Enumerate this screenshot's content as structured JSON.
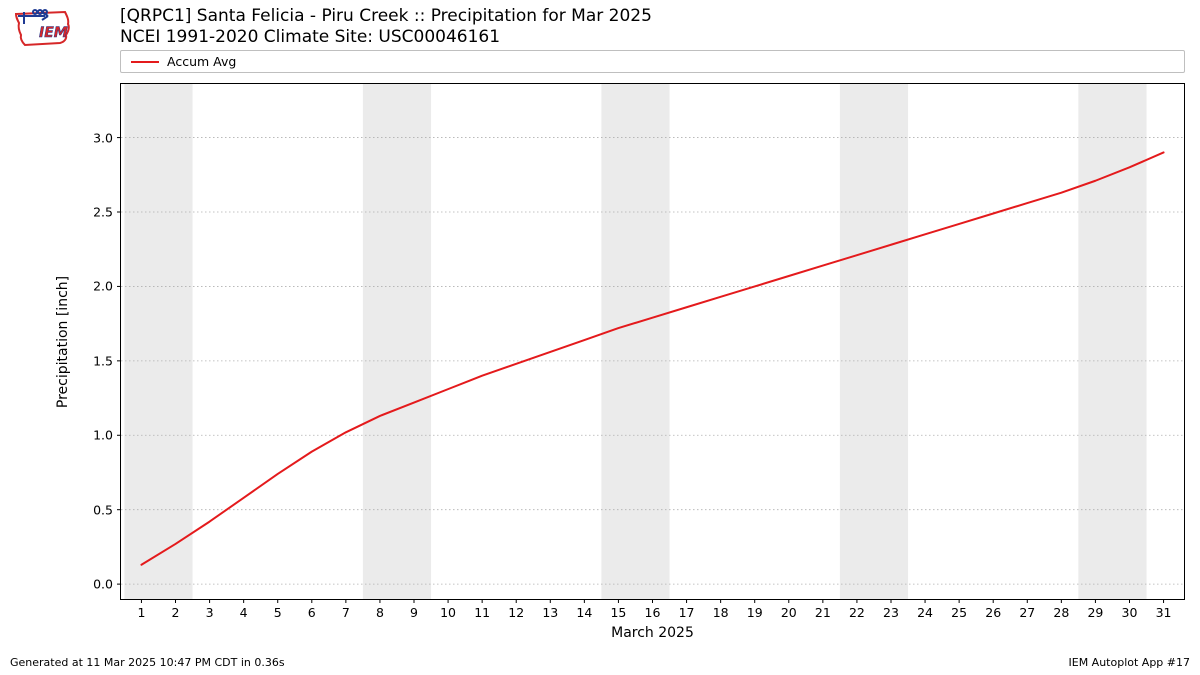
{
  "logo": {
    "text": "IEM",
    "stroke": "#d62728",
    "accent": "#1f3a93"
  },
  "title_line1": "[QRPC1] Santa Felicia - Piru Creek :: Precipitation for Mar 2025",
  "title_line2": "NCEI 1991-2020 Climate Site: USC00046161",
  "legend": {
    "label": "Accum Avg",
    "color": "#e41a1c"
  },
  "chart": {
    "type": "line",
    "xlabel": "March 2025",
    "ylabel": "Precipitation [inch]",
    "xlim": [
      0.4,
      31.6
    ],
    "ylim": [
      -0.1,
      3.36
    ],
    "yticks": [
      0.0,
      0.5,
      1.0,
      1.5,
      2.0,
      2.5,
      3.0
    ],
    "ytick_labels": [
      "0.0",
      "0.5",
      "1.0",
      "1.5",
      "2.0",
      "2.5",
      "3.0"
    ],
    "xticks": [
      1,
      2,
      3,
      4,
      5,
      6,
      7,
      8,
      9,
      10,
      11,
      12,
      13,
      14,
      15,
      16,
      17,
      18,
      19,
      20,
      21,
      22,
      23,
      24,
      25,
      26,
      27,
      28,
      29,
      30,
      31
    ],
    "xtick_labels": [
      "1",
      "2",
      "3",
      "4",
      "5",
      "6",
      "7",
      "8",
      "9",
      "10",
      "11",
      "12",
      "13",
      "14",
      "15",
      "16",
      "17",
      "18",
      "19",
      "20",
      "21",
      "22",
      "23",
      "24",
      "25",
      "26",
      "27",
      "28",
      "29",
      "30",
      "31"
    ],
    "x": [
      1,
      2,
      3,
      4,
      5,
      6,
      7,
      8,
      9,
      10,
      11,
      12,
      13,
      14,
      15,
      16,
      17,
      18,
      19,
      20,
      21,
      22,
      23,
      24,
      25,
      26,
      27,
      28,
      29,
      30,
      31
    ],
    "y": [
      0.13,
      0.27,
      0.42,
      0.58,
      0.74,
      0.89,
      1.02,
      1.13,
      1.22,
      1.31,
      1.4,
      1.48,
      1.56,
      1.64,
      1.72,
      1.79,
      1.86,
      1.93,
      2.0,
      2.07,
      2.14,
      2.21,
      2.28,
      2.35,
      2.42,
      2.49,
      2.56,
      2.63,
      2.71,
      2.8,
      2.9
    ],
    "weekend_bands": [
      [
        1,
        2
      ],
      [
        8,
        9
      ],
      [
        15,
        16
      ],
      [
        22,
        23
      ],
      [
        29,
        30
      ]
    ],
    "line_color": "#e41a1c",
    "line_width": 2,
    "grid_color": "#b0b0b0",
    "grid_dash": "1.5,2.5",
    "band_color": "#ebebeb",
    "background": "#ffffff",
    "tick_len": 4
  },
  "footer_left": "Generated at 11 Mar 2025 10:47 PM CDT in 0.36s",
  "footer_right": "IEM Autoplot App #17"
}
